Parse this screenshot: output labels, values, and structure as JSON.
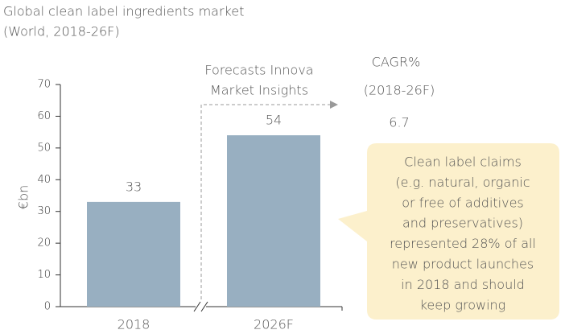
{
  "chart_data": {
    "type": "bar",
    "title": [
      "Global clean label ingredients market",
      "(World, 2018-26F)"
    ],
    "y_label": "€bn",
    "categories": [
      "2018",
      "2026F"
    ],
    "values": [
      33,
      54
    ],
    "color": "#98afc1",
    "ylim": [
      0,
      70
    ],
    "yticks": [
      0,
      10,
      20,
      30,
      40,
      50,
      60,
      70
    ],
    "forecast_note": [
      "Forecasts Innova",
      "Market Insights"
    ],
    "cagr": {
      "label": "CAGR%",
      "period": "(2018-26F)",
      "value": 6.7
    },
    "callout": [
      "Clean label claims",
      "(e.g. natural, organic",
      "or free of additives",
      "and preservatives)",
      "represented 28% of all",
      "new product launches",
      "in 2018 and should",
      "keep growing"
    ]
  }
}
